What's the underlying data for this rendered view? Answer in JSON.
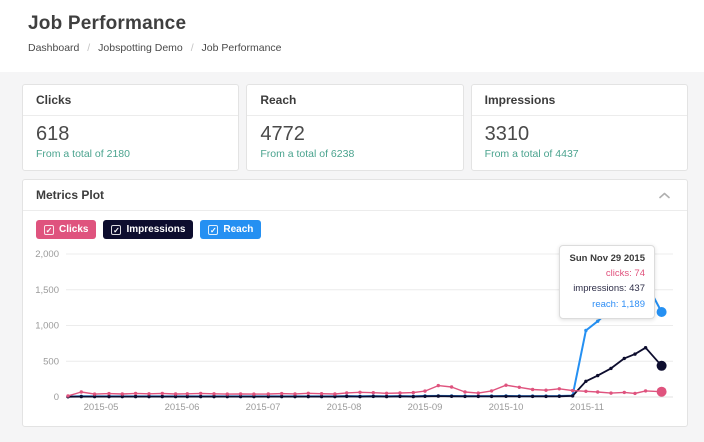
{
  "header": {
    "title": "Job Performance",
    "breadcrumb": [
      "Dashboard",
      "Jobspotting Demo",
      "Job Performance"
    ],
    "separator": "/"
  },
  "cards": [
    {
      "title": "Clicks",
      "value": "618",
      "caption": "From a total of 2180"
    },
    {
      "title": "Reach",
      "value": "4772",
      "caption": "From a total of 6238"
    },
    {
      "title": "Impressions",
      "value": "3310",
      "caption": "From a total of 4437"
    }
  ],
  "panel": {
    "title": "Metrics Plot",
    "legend": [
      {
        "label": "Clicks",
        "checkbox": "✓",
        "color": "#df537e"
      },
      {
        "label": "Impressions",
        "checkbox": "✓",
        "color": "#0d0d2e"
      },
      {
        "label": "Reach",
        "checkbox": "✓",
        "color": "#2590f2"
      }
    ]
  },
  "tooltip": {
    "title": "Sun Nov 29 2015",
    "rows": [
      "clicks: 74",
      "impressions: 437",
      "reach: 1,189"
    ]
  },
  "colors": {
    "accent_teal": "#4aa38e",
    "clicks": "#df537e",
    "impressions": "#0d0d2e",
    "reach": "#2590f2",
    "grid": "#ececec",
    "axis_text": "#9a9a9a"
  },
  "chart_data": {
    "type": "line",
    "title": "Metrics Plot",
    "xlabel": "",
    "ylabel": "",
    "ylim": [
      0,
      2000
    ],
    "grid": true,
    "legend_position": "top-left-buttons",
    "yticks": [
      "0",
      "500",
      "1,000",
      "1,500",
      "2,000"
    ],
    "xticks": [
      "2015-05",
      "2015-06",
      "2015-07",
      "2015-08",
      "2015-09",
      "2015-10",
      "2015-11"
    ],
    "hover_point": {
      "date": "2015-11-29",
      "clicks": 74,
      "impressions": 437,
      "reach": 1189
    },
    "x": [
      "2015-04-19",
      "2015-04-24",
      "2015-04-29",
      "2015-05-04",
      "2015-05-09",
      "2015-05-14",
      "2015-05-19",
      "2015-05-24",
      "2015-05-29",
      "2015-06-03",
      "2015-06-08",
      "2015-06-13",
      "2015-06-18",
      "2015-06-23",
      "2015-06-28",
      "2015-07-03",
      "2015-07-08",
      "2015-07-13",
      "2015-07-18",
      "2015-07-23",
      "2015-07-28",
      "2015-08-02",
      "2015-08-07",
      "2015-08-12",
      "2015-08-17",
      "2015-08-22",
      "2015-08-27",
      "2015-09-01",
      "2015-09-06",
      "2015-09-11",
      "2015-09-16",
      "2015-09-21",
      "2015-09-26",
      "2015-10-01",
      "2015-10-06",
      "2015-10-11",
      "2015-10-16",
      "2015-10-21",
      "2015-10-26",
      "2015-10-31",
      "2015-11-05",
      "2015-11-10",
      "2015-11-15",
      "2015-11-19",
      "2015-11-23",
      "2015-11-29"
    ],
    "series": [
      {
        "name": "reach",
        "color": "#2590f2",
        "width": 2,
        "values": [
          6,
          10,
          8,
          9,
          8,
          9,
          8,
          9,
          8,
          9,
          9,
          8,
          9,
          8,
          9,
          9,
          8,
          9,
          8,
          9,
          8,
          12,
          10,
          12,
          10,
          12,
          10,
          14,
          16,
          14,
          12,
          12,
          12,
          14,
          12,
          12,
          12,
          14,
          20,
          930,
          1060,
          1230,
          1440,
          1530,
          1610,
          1189
        ]
      },
      {
        "name": "impressions",
        "color": "#0d0d2e",
        "width": 1.8,
        "values": [
          4,
          6,
          5,
          6,
          5,
          6,
          5,
          6,
          5,
          6,
          6,
          5,
          6,
          5,
          6,
          6,
          5,
          6,
          5,
          6,
          5,
          8,
          6,
          8,
          6,
          8,
          6,
          10,
          12,
          10,
          8,
          8,
          8,
          10,
          8,
          8,
          8,
          10,
          15,
          220,
          300,
          400,
          540,
          600,
          690,
          437
        ]
      },
      {
        "name": "clicks",
        "color": "#df537e",
        "width": 1.4,
        "values": [
          15,
          70,
          40,
          48,
          42,
          50,
          45,
          50,
          42,
          45,
          50,
          45,
          40,
          44,
          40,
          42,
          48,
          44,
          52,
          46,
          42,
          58,
          66,
          60,
          52,
          56,
          62,
          82,
          160,
          140,
          70,
          55,
          85,
          165,
          135,
          105,
          95,
          115,
          90,
          80,
          70,
          55,
          65,
          50,
          85,
          74
        ]
      }
    ]
  }
}
